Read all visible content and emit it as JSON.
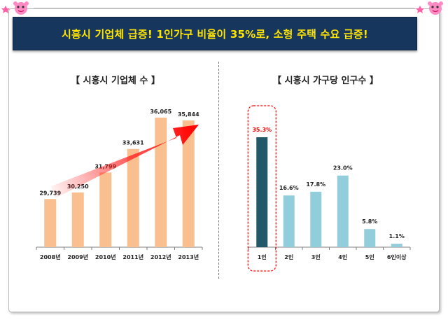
{
  "banner": {
    "text": "시흥시 기업체 급증!  1인가구 비율이 35%로, 소형 주택 수요 급증!"
  },
  "chart_data": [
    {
      "type": "bar",
      "title": "【 시흥시 기업체 수 】",
      "categories": [
        "2008년",
        "2009년",
        "2010년",
        "2011년",
        "2012년",
        "2013년"
      ],
      "values": [
        29739,
        30250,
        31799,
        33631,
        36065,
        35844
      ],
      "value_labels": [
        "29,739",
        "30,250",
        "31,799",
        "33,631",
        "36,065",
        "35,844"
      ],
      "xlabel": "",
      "ylabel": "",
      "ylim": [
        26000,
        36500
      ],
      "grid": false,
      "bar_color": "#f9bf8f",
      "annotation": "red upward trend arrow"
    },
    {
      "type": "bar",
      "title": "【 시흥시 가구당 인구수 】",
      "categories": [
        "1인",
        "2인",
        "3인",
        "4인",
        "5인",
        "6인이상"
      ],
      "values": [
        35.3,
        16.6,
        17.8,
        23.0,
        5.8,
        1.1
      ],
      "value_labels": [
        "35.3%",
        "16.6%",
        "17.8%",
        "23.0%",
        "5.8%",
        "1.1%"
      ],
      "xlabel": "",
      "ylabel": "",
      "ylim": [
        0,
        40
      ],
      "grid": false,
      "bar_color": "#92cddc",
      "highlight_color": "#215968",
      "highlight_label_color": "#ff0000",
      "highlight_index": 0
    }
  ]
}
